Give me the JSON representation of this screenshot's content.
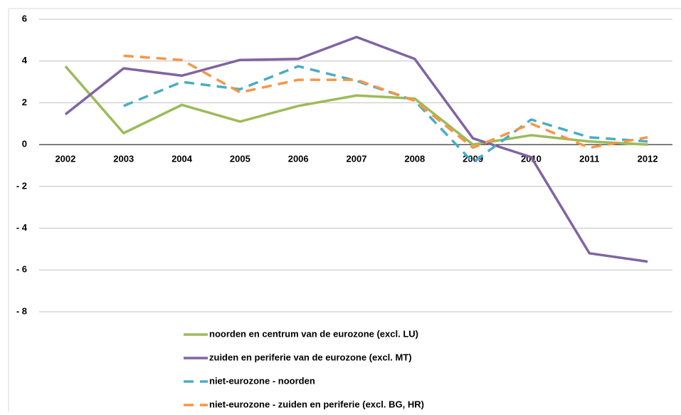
{
  "chart_data": {
    "type": "line",
    "categories": [
      "2002",
      "2003",
      "2004",
      "2005",
      "2006",
      "2007",
      "2008",
      "2009",
      "2010",
      "2011",
      "2012"
    ],
    "series": [
      {
        "name": "noorden en centrum van de eurozone (excl. LU)",
        "color": "#9bbb59",
        "dashed": false,
        "values": [
          3.75,
          0.55,
          1.9,
          1.1,
          1.85,
          2.35,
          2.2,
          0.0,
          0.45,
          0.15,
          0.0
        ]
      },
      {
        "name": "zuiden en periferie van de eurozone (excl. MT)",
        "color": "#8064a2",
        "dashed": false,
        "values": [
          1.45,
          3.65,
          3.3,
          4.05,
          4.1,
          5.15,
          4.1,
          0.3,
          -0.6,
          -5.2,
          -5.6
        ]
      },
      {
        "name": "niet-eurozone - noorden",
        "color": "#4bacc6",
        "dashed": true,
        "values": [
          null,
          1.85,
          3.0,
          2.65,
          3.75,
          3.05,
          2.1,
          -0.85,
          1.2,
          0.35,
          0.15
        ]
      },
      {
        "name": "niet-eurozone - zuiden en periferie (excl. BG, HR)",
        "color": "#f79646",
        "dashed": true,
        "values": [
          null,
          4.25,
          4.05,
          2.5,
          3.1,
          3.1,
          2.1,
          -0.15,
          1.0,
          -0.15,
          0.35
        ]
      }
    ],
    "ylim": [
      -8,
      6
    ],
    "yticks": [
      6,
      4,
      2,
      0,
      {
        "value": -2,
        "label": "- 2"
      },
      {
        "value": -4,
        "label": "- 4"
      },
      {
        "value": -6,
        "label": "- 6"
      },
      {
        "value": -8,
        "label": "- 8"
      }
    ],
    "grid": true,
    "legend": "bottom"
  }
}
